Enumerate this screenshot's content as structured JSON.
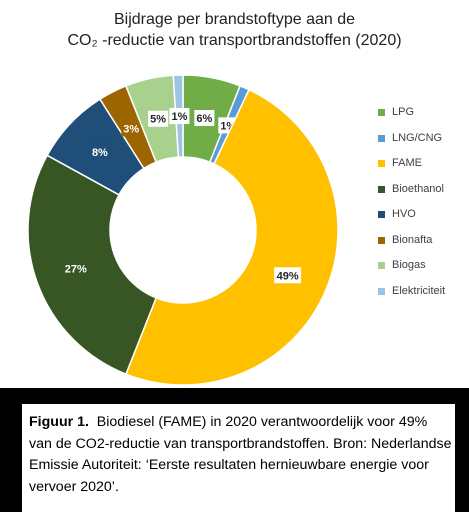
{
  "chart_data": {
    "type": "pie",
    "donut": true,
    "title": [
      "Bijdrage per brandstoftype aan de",
      "CO₂ -reductie van transportbrandstoffen (2020)"
    ],
    "legend_position": "right",
    "start_angle_deg": 0,
    "series": [
      {
        "name": "LPG",
        "value": 6,
        "label": "6%",
        "color": "#70AD47"
      },
      {
        "name": "LNG/CNG",
        "value": 1,
        "label": "1%",
        "color": "#5B9BD5"
      },
      {
        "name": "FAME",
        "value": 49,
        "label": "49%",
        "color": "#FFC000"
      },
      {
        "name": "Bioethanol",
        "value": 27,
        "label": "27%",
        "color": "#375623"
      },
      {
        "name": "HVO",
        "value": 8,
        "label": "8%",
        "color": "#1F4E79"
      },
      {
        "name": "Bionafta",
        "value": 3,
        "label": "3%",
        "color": "#9C6500"
      },
      {
        "name": "Biogas",
        "value": 5,
        "label": "5%",
        "color": "#A9D18E"
      },
      {
        "name": "Elektriciteit",
        "value": 1,
        "label": "1%",
        "color": "#9DC3E6"
      }
    ]
  },
  "caption": {
    "figure_label": "Figuur 1.",
    "text": "Biodiesel (FAME) in 2020 verantwoordelijk voor 49% van de CO2-reductie van transportbrandstoffen. Bron: Nederlandse Emissie Autoriteit: ‘Eerste resultaten hernieuwbare energie voor vervoer 2020’."
  }
}
